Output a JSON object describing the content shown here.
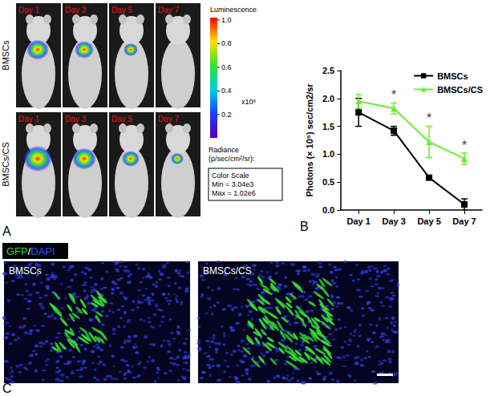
{
  "panel_a": {
    "label": "A",
    "rows": [
      "BMSCs",
      "BMSCs/CS"
    ],
    "columns": [
      "Day 1",
      "Day 3",
      "Day 5",
      "Day 7"
    ],
    "colorbar": {
      "title": "Luminescence",
      "multiplier": "x10⁶",
      "range": [
        0.00304,
        1.02
      ],
      "ticks": [
        {
          "value": 1,
          "label": "1.0"
        },
        0.8,
        0.6,
        0.4,
        0.2
      ],
      "unit_lines": [
        "Radiance",
        "(p/sec/cm²/sr):"
      ],
      "scale_box": [
        "Color Scale",
        "Min = 3.04e3",
        "Max = 1.02e6"
      ]
    }
  },
  "panel_b_label": "B",
  "chart_data": {
    "type": "line",
    "categories": [
      "Day 1",
      "Day 3",
      "Day 5",
      "Day 7"
    ],
    "series": [
      {
        "name": "BMSCs",
        "color": "#000000",
        "marker": "square",
        "values": [
          1.75,
          1.42,
          0.58,
          0.1
        ],
        "errors": [
          0.25,
          0.08,
          0.03,
          0.1
        ]
      },
      {
        "name": "BMSCs/CS",
        "color": "#66ee33",
        "marker": "triangle",
        "values": [
          1.95,
          1.82,
          1.22,
          0.92
        ],
        "errors": [
          0.12,
          0.1,
          0.28,
          0.1
        ]
      }
    ],
    "y_label": "Photons (× 10⁵) sec/cm2/sr",
    "ylim": [
      0,
      2.5
    ],
    "yticks": [
      {
        "value": 0,
        "label": "0.0"
      },
      0.5,
      {
        "value": 1,
        "label": "1.0"
      },
      1.5,
      {
        "value": 2,
        "label": "2.0"
      },
      2.5
    ],
    "legend": "upper right",
    "grid": false,
    "annotations": [
      {
        "text": "*",
        "category": "Day 3"
      },
      {
        "text": "*",
        "category": "Day 5"
      },
      {
        "text": "*",
        "category": "Day 7"
      }
    ]
  },
  "panel_c": {
    "label": "C",
    "legend": [
      {
        "text": "GFP",
        "color": "#33dd33"
      },
      {
        "text": "/",
        "color": "#ffffff"
      },
      {
        "text": "DAPI",
        "color": "#3355ff"
      }
    ],
    "images": [
      "BMSCs",
      "BMSCs/CS"
    ]
  }
}
